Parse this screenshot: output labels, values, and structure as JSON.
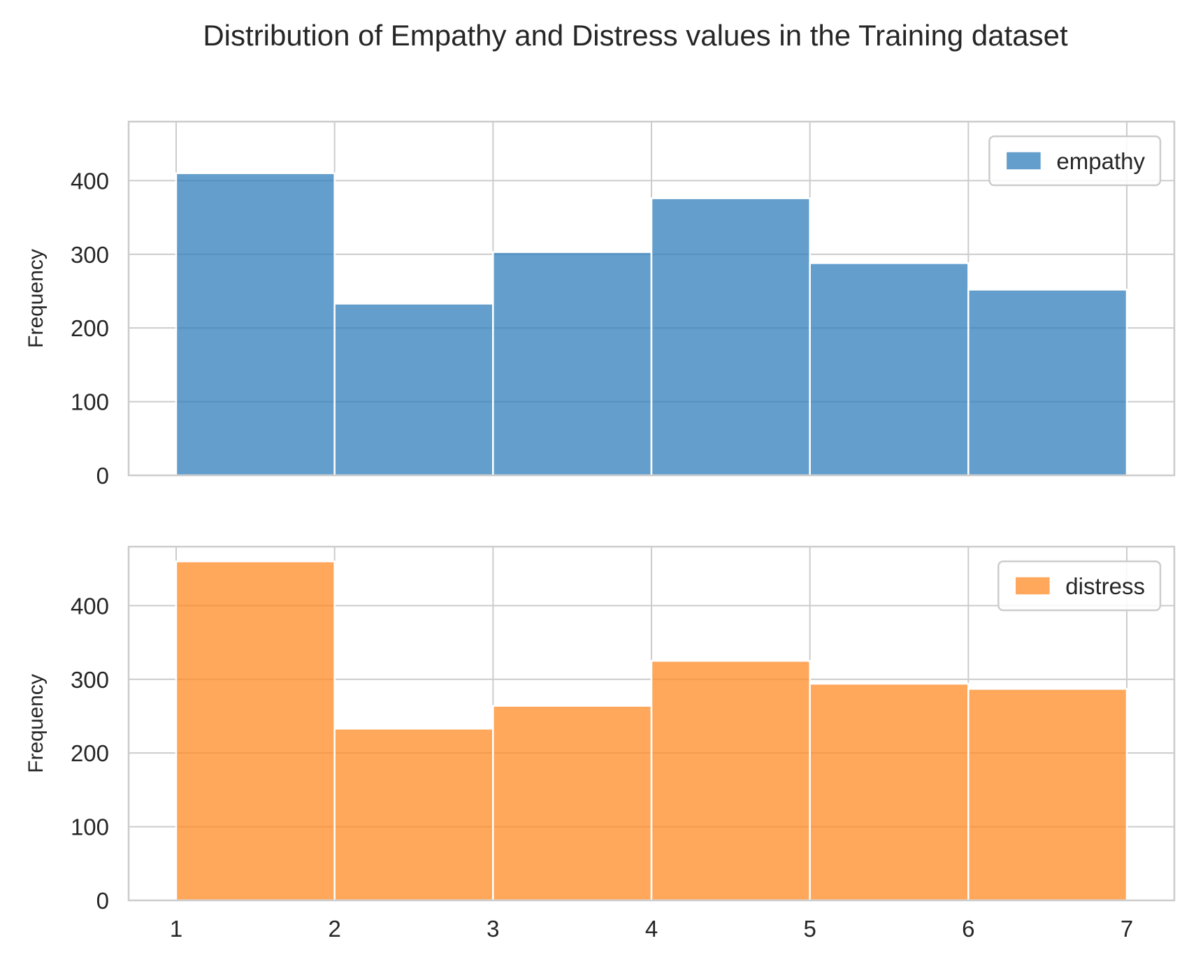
{
  "colors": {
    "background": "#ffffff",
    "grid": "#cccccc",
    "spine": "#cccccc",
    "empathy": "#2f7dbb",
    "distress": "#ff8a24",
    "bar_edge": "#ffffff",
    "text": "#262626"
  },
  "chart_data": {
    "type": "bar",
    "title": "Distribution of Empathy and Distress values in the Training dataset",
    "subplots": [
      {
        "name": "empathy",
        "legend": "empathy",
        "legend_position": "top-right",
        "color_key": "empathy",
        "ylabel": "Frequency",
        "xlabel": "",
        "bin_edges": [
          1,
          2,
          3,
          4,
          5,
          6,
          7
        ],
        "values": [
          410,
          233,
          303,
          376,
          288,
          252
        ],
        "ylim": [
          0,
          480
        ],
        "yticks": [
          0,
          100,
          200,
          300,
          400
        ],
        "xticks": [
          1,
          2,
          3,
          4,
          5,
          6,
          7
        ],
        "show_xtick_labels": false,
        "grid": true
      },
      {
        "name": "distress",
        "legend": "distress",
        "legend_position": "top-right",
        "color_key": "distress",
        "ylabel": "Frequency",
        "xlabel": "",
        "bin_edges": [
          1,
          2,
          3,
          4,
          5,
          6,
          7
        ],
        "values": [
          460,
          233,
          264,
          325,
          294,
          287
        ],
        "ylim": [
          0,
          480
        ],
        "yticks": [
          0,
          100,
          200,
          300,
          400
        ],
        "xticks": [
          1,
          2,
          3,
          4,
          5,
          6,
          7
        ],
        "show_xtick_labels": true,
        "grid": true
      }
    ],
    "xlim": [
      0.7,
      7.3
    ]
  }
}
